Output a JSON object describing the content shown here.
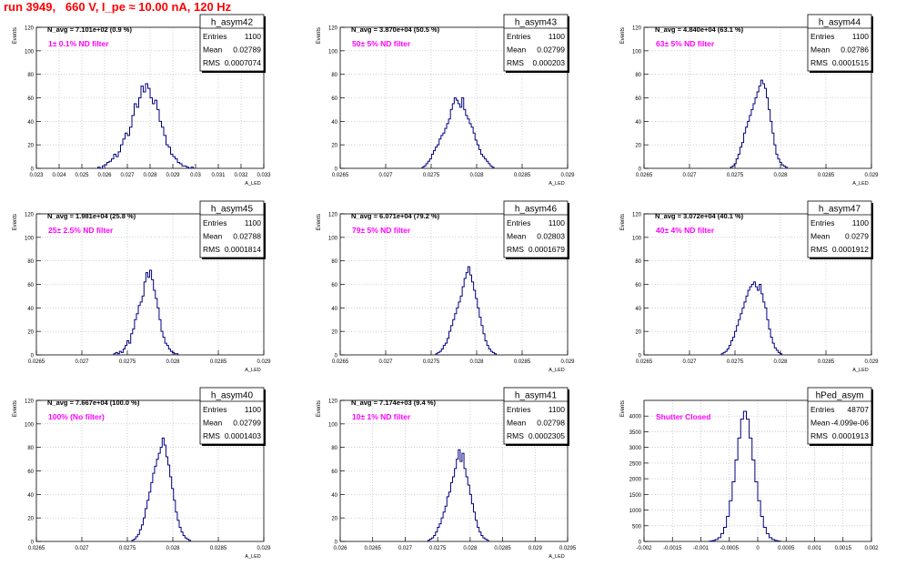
{
  "page_title": "run 3949,   660 V, I_pe ≈ 10.00 nA, 120 Hz",
  "chart_data": [
    {
      "type": "histogram",
      "hist_name": "h_asym42",
      "n_avg_text": "N_avg = 7.101e+02 (0.9 %)",
      "filter_label": "1± 0.1% ND filter",
      "stats": {
        "entries_label": "Entries",
        "entries": "1100",
        "mean_label": "Mean",
        "mean": "0.02789",
        "rms_label": "RMS",
        "rms": "0.0007074"
      },
      "ylabel": "Events",
      "xlabel": "A_LED",
      "xlim": [
        0.023,
        0.033
      ],
      "ylim": [
        0,
        120
      ],
      "xticks": [
        0.023,
        0.024,
        0.025,
        0.026,
        0.027,
        0.028,
        0.029,
        0.03,
        0.031,
        0.032,
        0.033
      ],
      "xtick_labels": [
        "0.023",
        "0.024",
        "0.025",
        "0.026",
        "0.027",
        "0.028",
        "0.029",
        "0.03",
        "0.031",
        "0.032",
        "0.033"
      ],
      "yticks": [
        0,
        20,
        40,
        60,
        80,
        100,
        120
      ],
      "ytick_labels": [
        "0",
        "20",
        "40",
        "60",
        "80",
        "100",
        "120"
      ],
      "bins": {
        "start": 0.0257,
        "width": 0.0001,
        "counts": [
          1,
          0,
          2,
          3,
          5,
          6,
          8,
          12,
          10,
          14,
          20,
          25,
          30,
          28,
          35,
          45,
          55,
          52,
          60,
          70,
          65,
          72,
          68,
          60,
          55,
          58,
          50,
          40,
          35,
          28,
          20,
          18,
          12,
          10,
          8,
          5,
          4,
          2,
          2,
          1,
          0,
          1
        ]
      }
    },
    {
      "type": "histogram",
      "hist_name": "h_asym43",
      "n_avg_text": "N_avg = 3.870e+04 (50.5 %)",
      "filter_label": "50± 5% ND filter",
      "stats": {
        "entries_label": "Entries",
        "entries": "1100",
        "mean_label": "Mean",
        "mean": "0.02799",
        "rms_label": "RMS",
        "rms": "0.000203"
      },
      "ylabel": "Events",
      "xlabel": "A_LED",
      "xlim": [
        0.0265,
        0.029
      ],
      "ylim": [
        0,
        120
      ],
      "xticks": [
        0.0265,
        0.027,
        0.0275,
        0.028,
        0.0285,
        0.029
      ],
      "xtick_labels": [
        "0.0265",
        "0.027",
        "0.0275",
        "0.028",
        "0.0285",
        "0.029"
      ],
      "yticks": [
        0,
        20,
        40,
        60,
        80,
        100,
        120
      ],
      "ytick_labels": [
        "0",
        "20",
        "40",
        "60",
        "80",
        "100",
        "120"
      ],
      "bins": {
        "start": 0.0274,
        "width": 2.08e-05,
        "counts": [
          1,
          2,
          4,
          6,
          8,
          12,
          15,
          18,
          20,
          25,
          28,
          30,
          34,
          38,
          42,
          50,
          55,
          60,
          58,
          55,
          52,
          60,
          50,
          45,
          42,
          38,
          35,
          30,
          24,
          20,
          16,
          12,
          10,
          8,
          6,
          4,
          2,
          1
        ]
      }
    },
    {
      "type": "histogram",
      "hist_name": "h_asym44",
      "n_avg_text": "N_avg = 4.840e+04 (63.1 %)",
      "filter_label": "63± 5% ND filter",
      "stats": {
        "entries_label": "Entries",
        "entries": "1100",
        "mean_label": "Mean",
        "mean": "0.02786",
        "rms_label": "RMS",
        "rms": "0.0001515"
      },
      "ylabel": "Events",
      "xlabel": "A_LED",
      "xlim": [
        0.0265,
        0.029
      ],
      "ylim": [
        0,
        120
      ],
      "xticks": [
        0.0265,
        0.027,
        0.0275,
        0.028,
        0.0285,
        0.029
      ],
      "xtick_labels": [
        "0.0265",
        "0.027",
        "0.0275",
        "0.028",
        "0.0285",
        "0.029"
      ],
      "yticks": [
        0,
        20,
        40,
        60,
        80,
        100,
        120
      ],
      "ytick_labels": [
        "0",
        "20",
        "40",
        "60",
        "80",
        "100",
        "120"
      ],
      "bins": {
        "start": 0.02745,
        "width": 2.08e-05,
        "counts": [
          1,
          2,
          4,
          8,
          12,
          18,
          22,
          30,
          35,
          40,
          45,
          50,
          55,
          60,
          65,
          70,
          75,
          72,
          68,
          60,
          50,
          40,
          30,
          20,
          12,
          8,
          5,
          3,
          2,
          1
        ]
      }
    },
    {
      "type": "histogram",
      "hist_name": "h_asym45",
      "n_avg_text": "N_avg = 1.981e+04 (25.8 %)",
      "filter_label": "25± 2.5% ND filter",
      "stats": {
        "entries_label": "Entries",
        "entries": "1100",
        "mean_label": "Mean",
        "mean": "0.02788",
        "rms_label": "RMS",
        "rms": "0.0001814"
      },
      "ylabel": "Events",
      "xlabel": "A_LED",
      "xlim": [
        0.0265,
        0.029
      ],
      "ylim": [
        0,
        120
      ],
      "xticks": [
        0.0265,
        0.027,
        0.0275,
        0.028,
        0.0285,
        0.029
      ],
      "xtick_labels": [
        "0.0265",
        "0.027",
        "0.0275",
        "0.028",
        "0.0285",
        "0.029"
      ],
      "yticks": [
        0,
        20,
        40,
        60,
        80,
        100,
        120
      ],
      "ytick_labels": [
        "0",
        "20",
        "40",
        "60",
        "80",
        "100",
        "120"
      ],
      "bins": {
        "start": 0.02735,
        "width": 2.08e-05,
        "counts": [
          1,
          2,
          1,
          3,
          2,
          5,
          8,
          12,
          10,
          18,
          22,
          30,
          35,
          42,
          45,
          50,
          62,
          70,
          66,
          72,
          64,
          55,
          48,
          40,
          30,
          20,
          15,
          10,
          8,
          5,
          3,
          2,
          1,
          1
        ]
      }
    },
    {
      "type": "histogram",
      "hist_name": "h_asym46",
      "n_avg_text": "N_avg = 6.071e+04 (79.2 %)",
      "filter_label": "79± 5% ND filter",
      "stats": {
        "entries_label": "Entries",
        "entries": "1100",
        "mean_label": "Mean",
        "mean": "0.02803",
        "rms_label": "RMS",
        "rms": "0.0001679"
      },
      "ylabel": "Events",
      "xlabel": "A_LED",
      "xlim": [
        0.0265,
        0.029
      ],
      "ylim": [
        0,
        120
      ],
      "xticks": [
        0.0265,
        0.027,
        0.0275,
        0.028,
        0.0285,
        0.029
      ],
      "xtick_labels": [
        "0.0265",
        "0.027",
        "0.0275",
        "0.028",
        "0.0285",
        "0.029"
      ],
      "yticks": [
        0,
        20,
        40,
        60,
        80,
        100,
        120
      ],
      "ytick_labels": [
        "0",
        "20",
        "40",
        "60",
        "80",
        "100",
        "120"
      ],
      "bins": {
        "start": 0.02755,
        "width": 2.08e-05,
        "counts": [
          1,
          2,
          3,
          5,
          8,
          10,
          14,
          20,
          25,
          30,
          35,
          40,
          45,
          50,
          58,
          65,
          70,
          75,
          68,
          62,
          55,
          48,
          40,
          32,
          25,
          18,
          12,
          8,
          5,
          3,
          2,
          1
        ]
      }
    },
    {
      "type": "histogram",
      "hist_name": "h_asym47",
      "n_avg_text": "N_avg = 3.072e+04 (40.1 %)",
      "filter_label": "40± 4% ND filter",
      "stats": {
        "entries_label": "Entries",
        "entries": "1100",
        "mean_label": "Mean",
        "mean": "0.0279",
        "rms_label": "RMS",
        "rms": "0.0001912"
      },
      "ylabel": "Events",
      "xlabel": "A_LED",
      "xlim": [
        0.0265,
        0.029
      ],
      "ylim": [
        0,
        120
      ],
      "xticks": [
        0.0265,
        0.027,
        0.0275,
        0.028,
        0.0285,
        0.029
      ],
      "xtick_labels": [
        "0.0265",
        "0.027",
        "0.0275",
        "0.028",
        "0.0285",
        "0.029"
      ],
      "yticks": [
        0,
        20,
        40,
        60,
        80,
        100,
        120
      ],
      "ytick_labels": [
        "0",
        "20",
        "40",
        "60",
        "80",
        "100",
        "120"
      ],
      "bins": {
        "start": 0.02735,
        "width": 2.08e-05,
        "counts": [
          1,
          2,
          3,
          5,
          8,
          12,
          15,
          20,
          25,
          30,
          35,
          40,
          45,
          50,
          55,
          58,
          60,
          62,
          58,
          55,
          60,
          52,
          45,
          40,
          30,
          22,
          15,
          10,
          6,
          4,
          2,
          1
        ]
      }
    },
    {
      "type": "histogram",
      "hist_name": "h_asym40",
      "n_avg_text": "N_avg = 7.667e+04 (100.0 %)",
      "filter_label": "100% (No filter)",
      "stats": {
        "entries_label": "Entries",
        "entries": "1100",
        "mean_label": "Mean",
        "mean": "0.02799",
        "rms_label": "RMS",
        "rms": "0.0001403"
      },
      "ylabel": "Events",
      "xlabel": "A_LED",
      "xlim": [
        0.0265,
        0.029
      ],
      "ylim": [
        0,
        120
      ],
      "xticks": [
        0.0265,
        0.027,
        0.0275,
        0.028,
        0.0285,
        0.029
      ],
      "xtick_labels": [
        "0.0265",
        "0.027",
        "0.0275",
        "0.028",
        "0.0285",
        "0.029"
      ],
      "yticks": [
        0,
        20,
        40,
        60,
        80,
        100,
        120
      ],
      "ytick_labels": [
        "0",
        "20",
        "40",
        "60",
        "80",
        "100",
        "120"
      ],
      "bins": {
        "start": 0.02755,
        "width": 2.08e-05,
        "counts": [
          1,
          2,
          4,
          6,
          10,
          14,
          20,
          28,
          35,
          42,
          50,
          58,
          64,
          70,
          75,
          80,
          88,
          82,
          72,
          65,
          55,
          45,
          35,
          25,
          18,
          12,
          8,
          5,
          3,
          2,
          1
        ]
      }
    },
    {
      "type": "histogram",
      "hist_name": "h_asym41",
      "n_avg_text": "N_avg = 7.174e+03 (9.4 %)",
      "filter_label": "10± 1% ND filter",
      "stats": {
        "entries_label": "Entries",
        "entries": "1100",
        "mean_label": "Mean",
        "mean": "0.02798",
        "rms_label": "RMS",
        "rms": "0.0002305"
      },
      "ylabel": "Events",
      "xlabel": "A_LED",
      "xlim": [
        0.026,
        0.0295
      ],
      "ylim": [
        0,
        120
      ],
      "xticks": [
        0.026,
        0.0265,
        0.027,
        0.0275,
        0.028,
        0.0285,
        0.029,
        0.0295
      ],
      "xtick_labels": [
        "0.026",
        "0.0265",
        "0.027",
        "0.0275",
        "0.028",
        "0.0285",
        "0.029",
        "0.0295"
      ],
      "yticks": [
        0,
        20,
        40,
        60,
        80,
        100,
        120
      ],
      "ytick_labels": [
        "0",
        "20",
        "40",
        "60",
        "80",
        "100",
        "120"
      ],
      "bins": {
        "start": 0.02735,
        "width": 2.92e-05,
        "counts": [
          1,
          2,
          3,
          5,
          8,
          12,
          15,
          20,
          25,
          30,
          38,
          42,
          50,
          55,
          62,
          70,
          78,
          68,
          75,
          62,
          55,
          48,
          40,
          32,
          25,
          18,
          12,
          8,
          5,
          3,
          2,
          1
        ]
      }
    },
    {
      "type": "histogram",
      "hist_name": "hPed_asym",
      "n_avg_text": "",
      "filter_label": "Shutter Closed",
      "stats": {
        "entries_label": "Entries",
        "entries": "48707",
        "mean_label": "Mean",
        "mean": "-4.099e-06",
        "rms_label": "RMS",
        "rms": "0.0001913"
      },
      "ylabel": "Events",
      "xlabel": "",
      "xlim": [
        -0.002,
        0.002
      ],
      "ylim": [
        0,
        4500
      ],
      "xticks": [
        -0.002,
        -0.0015,
        -0.001,
        -0.0005,
        0,
        0.0005,
        0.001,
        0.0015,
        0.002
      ],
      "xtick_labels": [
        "-0.002",
        "-0.0015",
        "-0.001",
        "-0.0005",
        "0",
        "0.0005",
        "0.001",
        "0.0015",
        "0.002"
      ],
      "yticks": [
        0,
        500,
        1000,
        1500,
        2000,
        2500,
        3000,
        3500,
        4000
      ],
      "ytick_labels": [
        "0",
        "500",
        "1000",
        "1500",
        "2000",
        "2500",
        "3000",
        "3500",
        "4000"
      ],
      "bins": {
        "start": -0.00085,
        "width": 5e-05,
        "counts": [
          10,
          30,
          60,
          120,
          250,
          450,
          800,
          1300,
          1900,
          2600,
          3300,
          3900,
          4150,
          3900,
          3300,
          2600,
          1900,
          1300,
          800,
          450,
          250,
          120,
          60,
          30,
          10
        ]
      }
    }
  ]
}
